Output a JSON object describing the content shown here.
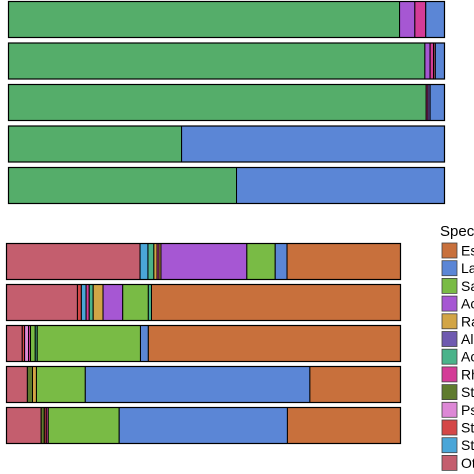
{
  "colors": {
    "Escherichia": "#c8703c",
    "Lactobacillus": "#5b86d6",
    "Salmonella": "#79bb45",
    "Acinetobacter": "#a657d3",
    "Ralstonia": "#d2a546",
    "Alistipes": "#6f5ab0",
    "Acidovorax": "#4ab38a",
    "Rhodococcus": "#d43c97",
    "Stenotrophomonas": "#5f7b2e",
    "Pseudomonas": "#dd88d6",
    "Staphylococcus": "#d44747",
    "Streptococcus": "#4aa6d8",
    "Others": "#c45e6e",
    "Green": "#55ad6a"
  },
  "chart_data": [
    {
      "type": "bar",
      "orientation": "horizontal",
      "stacked": true,
      "normalized": true,
      "rows": [
        [
          [
            "Green",
            0.897
          ],
          [
            "Acinetobacter",
            0.035
          ],
          [
            "Rhodococcus",
            0.025
          ],
          [
            "Others",
            0.0
          ],
          [
            "Lactobacillus",
            0.043
          ]
        ],
        [
          [
            "Green",
            0.955
          ],
          [
            "Acinetobacter",
            0.012
          ],
          [
            "Rhodococcus",
            0.008
          ],
          [
            "Others",
            0.004
          ],
          [
            "Lactobacillus",
            0.021
          ]
        ],
        [
          [
            "Green",
            0.958
          ],
          [
            "Rhodococcus",
            0.004
          ],
          [
            "Alistipes",
            0.005
          ],
          [
            "Lactobacillus",
            0.033
          ]
        ],
        [
          [
            "Green",
            0.397
          ],
          [
            "Lactobacillus",
            0.603
          ]
        ],
        [
          [
            "Green",
            0.523
          ],
          [
            "Lactobacillus",
            0.477
          ]
        ]
      ]
    },
    {
      "type": "bar",
      "orientation": "horizontal",
      "stacked": true,
      "normalized": true,
      "legend_title": "Spec",
      "legend": [
        "Es",
        "La",
        "Sa",
        "Ac",
        "Ra",
        "Al",
        "Ac",
        "Rh",
        "St",
        "Ps",
        "St",
        "St",
        "Ot"
      ],
      "series": [
        "Escherichia",
        "Lactobacillus",
        "Salmonella",
        "Acinetobacter",
        "Ralstonia",
        "Alistipes",
        "Acidovorax",
        "Rhodococcus",
        "Stenotrophomonas",
        "Pseudomonas",
        "Staphylococcus",
        "Streptococcus",
        "Others"
      ],
      "rows": [
        [
          [
            "Others",
            0.339
          ],
          [
            "Streptococcus",
            0.02
          ],
          [
            "Acidovorax",
            0.015
          ],
          [
            "Ralstonia",
            0.008
          ],
          [
            "Rhodococcus",
            0.005
          ],
          [
            "Ralstonia",
            0.005
          ],
          [
            "Acinetobacter",
            0.218
          ],
          [
            "Salmonella",
            0.072
          ],
          [
            "Lactobacillus",
            0.03
          ],
          [
            "Escherichia",
            0.288
          ]
        ],
        [
          [
            "Others",
            0.18
          ],
          [
            "Staphylococcus",
            0.01
          ],
          [
            "Streptococcus",
            0.012
          ],
          [
            "Rhodococcus",
            0.008
          ],
          [
            "Acidovorax",
            0.01
          ],
          [
            "Ralstonia",
            0.025
          ],
          [
            "Acinetobacter",
            0.05
          ],
          [
            "Salmonella",
            0.065
          ],
          [
            "Acidovorax",
            0.008
          ],
          [
            "Escherichia",
            0.632
          ]
        ],
        [
          [
            "Others",
            0.04
          ],
          [
            "Staphylococcus",
            0.006
          ],
          [
            "Pseudomonas",
            0.01
          ],
          [
            "Rhodococcus",
            0.005
          ],
          [
            "Salmonella",
            0.012
          ],
          [
            "Acidovorax",
            0.005
          ],
          [
            "Salmonella",
            0.262
          ],
          [
            "Lactobacillus",
            0.02
          ],
          [
            "Escherichia",
            0.64
          ]
        ],
        [
          [
            "Others",
            0.053
          ],
          [
            "Stenotrophomonas",
            0.013
          ],
          [
            "Ralstonia",
            0.01
          ],
          [
            "Salmonella",
            0.124
          ],
          [
            "Lactobacillus",
            0.57
          ],
          [
            "Escherichia",
            0.23
          ]
        ],
        [
          [
            "Others",
            0.088
          ],
          [
            "Stenotrophomonas",
            0.008
          ],
          [
            "Staphylococcus",
            0.005
          ],
          [
            "Rhodococcus",
            0.005
          ],
          [
            "Salmonella",
            0.18
          ],
          [
            "Lactobacillus",
            0.427
          ],
          [
            "Escherichia",
            0.287
          ]
        ]
      ]
    }
  ]
}
